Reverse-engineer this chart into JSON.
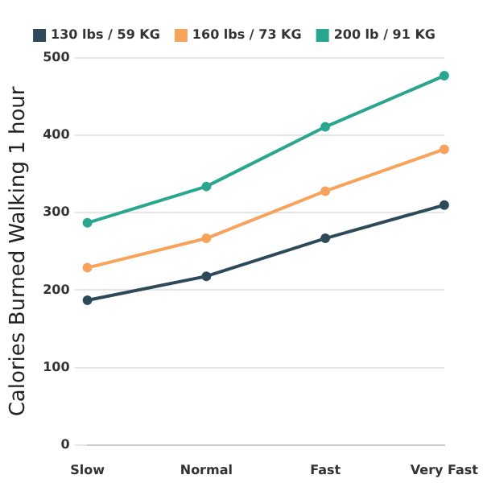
{
  "chart_data": {
    "type": "line",
    "ylabel": "Calories Burned Walking 1 hour",
    "categories": [
      "Slow",
      "Normal",
      "Fast",
      "Very Fast"
    ],
    "series": [
      {
        "name": "130 lbs / 59 KG",
        "color": "#2d4a5a",
        "values": [
          187,
          218,
          267,
          310
        ]
      },
      {
        "name": "160 lbs / 73 KG",
        "color": "#f7a35c",
        "values": [
          229,
          267,
          328,
          382
        ]
      },
      {
        "name": "200 lb / 91 KG",
        "color": "#2aa68f",
        "values": [
          287,
          334,
          411,
          477
        ]
      }
    ],
    "ylim": [
      0,
      500
    ],
    "yticks": [
      0,
      100,
      200,
      300,
      400,
      500
    ],
    "grid": "y",
    "legend": "top",
    "marker": "circle",
    "line_style": "solid"
  }
}
